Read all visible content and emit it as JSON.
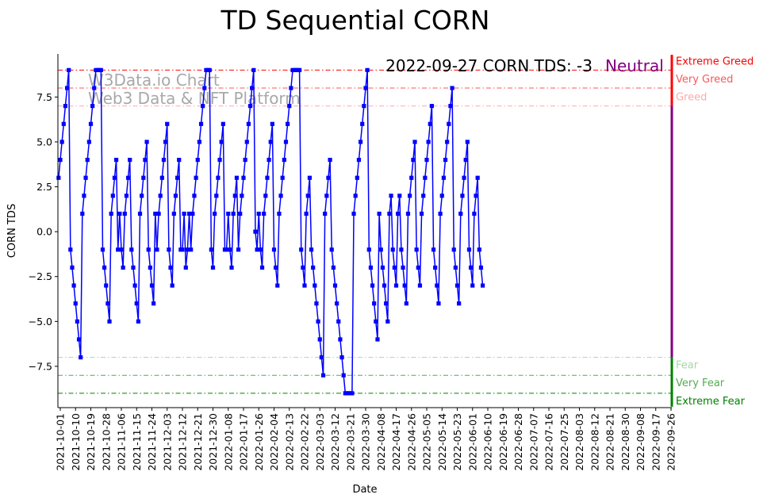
{
  "chart_data": {
    "type": "line",
    "title": "TD Sequential CORN",
    "xlabel": "Date",
    "ylabel": "CORN TDS",
    "ylim": [
      -9.8,
      9.9
    ],
    "yticks": [
      -7.5,
      -5.0,
      -2.5,
      0.0,
      2.5,
      5.0,
      7.5
    ],
    "ytick_labels": [
      "−7.5",
      "−5.0",
      "−2.5",
      "0.0",
      "2.5",
      "5.0",
      "7.5"
    ],
    "annotation": "2022-09-27 CORN TDS: -3",
    "sentiment": "Neutral",
    "sentiment_color": "#800080",
    "watermark": [
      "W3Data.io Chart",
      "Web3 Data & NFT Platform"
    ],
    "date_labels": [
      "2021-10-01",
      "2021-10-10",
      "2021-10-19",
      "2021-10-28",
      "2021-11-06",
      "2021-11-15",
      "2021-11-24",
      "2021-12-03",
      "2021-12-12",
      "2021-12-21",
      "2021-12-30",
      "2022-01-08",
      "2022-01-17",
      "2022-01-26",
      "2022-02-04",
      "2022-02-13",
      "2022-02-22",
      "2022-03-03",
      "2022-03-12",
      "2022-03-21",
      "2022-03-30",
      "2022-04-08",
      "2022-04-17",
      "2022-04-26",
      "2022-05-05",
      "2022-05-14",
      "2022-05-23",
      "2022-06-01",
      "2022-06-10",
      "2022-06-19",
      "2022-06-28",
      "2022-07-07",
      "2022-07-16",
      "2022-07-25",
      "2022-08-03",
      "2022-08-12",
      "2022-08-21",
      "2022-08-30",
      "2022-09-08",
      "2022-09-17",
      "2022-09-26"
    ],
    "reference_lines": [
      {
        "label": "Extreme Greed",
        "value": 9,
        "color": "#ff0000"
      },
      {
        "label": "Very Greed",
        "value": 8,
        "color": "#ff5555"
      },
      {
        "label": "Greed",
        "value": 7,
        "color": "#ffaaaa"
      },
      {
        "label": "Fear",
        "value": -7,
        "color": "#aad5aa"
      },
      {
        "label": "Very Fear",
        "value": -8,
        "color": "#55aa55"
      },
      {
        "label": "Extreme Fear",
        "value": -9,
        "color": "#008000"
      }
    ],
    "series": [
      {
        "name": "CORN TDS",
        "color": "#0000ff",
        "start_date": "2021-09-30",
        "values": [
          3,
          4,
          5,
          6,
          7,
          8,
          9,
          -1,
          -2,
          -3,
          -4,
          -5,
          -6,
          -7,
          1,
          2,
          3,
          4,
          5,
          6,
          7,
          8,
          9,
          9,
          9,
          9,
          -1,
          -2,
          -3,
          -4,
          -5,
          1,
          2,
          3,
          4,
          -1,
          1,
          -1,
          -2,
          1,
          2,
          3,
          4,
          -1,
          -2,
          -3,
          -4,
          -5,
          1,
          2,
          3,
          4,
          5,
          -1,
          -2,
          -3,
          -4,
          1,
          -1,
          1,
          2,
          3,
          4,
          5,
          6,
          -1,
          -2,
          -3,
          1,
          2,
          3,
          4,
          -1,
          -1,
          1,
          -2,
          -1,
          1,
          -1,
          1,
          2,
          3,
          4,
          5,
          6,
          7,
          8,
          9,
          9,
          9,
          -1,
          -2,
          1,
          2,
          3,
          4,
          5,
          6,
          -1,
          -1,
          1,
          -1,
          -2,
          1,
          2,
          3,
          -1,
          1,
          2,
          3,
          4,
          5,
          6,
          7,
          8,
          9,
          0,
          -1,
          1,
          -1,
          -2,
          1,
          2,
          3,
          4,
          5,
          6,
          -1,
          -2,
          -3,
          1,
          2,
          3,
          4,
          5,
          6,
          7,
          8,
          9,
          9,
          9,
          9,
          9,
          -1,
          -2,
          -3,
          1,
          2,
          3,
          -1,
          -2,
          -3,
          -4,
          -5,
          -6,
          -7,
          -8,
          1,
          2,
          3,
          4,
          -1,
          -2,
          -3,
          -4,
          -5,
          -6,
          -7,
          -8,
          -9,
          -9,
          -9,
          -9,
          -9,
          1,
          2,
          3,
          4,
          5,
          6,
          7,
          8,
          9,
          -1,
          -2,
          -3,
          -4,
          -5,
          -6,
          1,
          -1,
          -2,
          -3,
          -4,
          -5,
          1,
          2,
          -1,
          -2,
          -3,
          1,
          2,
          -1,
          -2,
          -3,
          -4,
          1,
          2,
          3,
          4,
          5,
          -1,
          -2,
          -3,
          1,
          2,
          3,
          4,
          5,
          6,
          7,
          -1,
          -2,
          -3,
          -4,
          1,
          2,
          3,
          4,
          5,
          6,
          7,
          8,
          -1,
          -2,
          -3,
          -4,
          1,
          2,
          3,
          4,
          5,
          -1,
          -2,
          -3,
          1,
          2,
          3,
          -1,
          -2,
          -3
        ]
      }
    ]
  }
}
